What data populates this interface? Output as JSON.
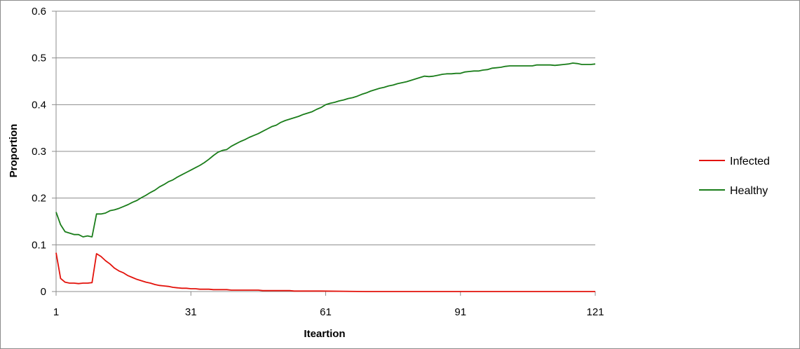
{
  "chart_data": {
    "type": "line",
    "title": "",
    "xlabel": "Iteartion",
    "ylabel": "Proportion",
    "xlim": [
      1,
      121
    ],
    "ylim": [
      0,
      0.6
    ],
    "x_ticks": [
      "1",
      "31",
      "61",
      "91",
      "121"
    ],
    "y_ticks": [
      "0",
      "0.1",
      "0.2",
      "0.3",
      "0.4",
      "0.5",
      "0.6"
    ],
    "grid": "horizontal",
    "legend_position": "right",
    "series": [
      {
        "name": "Infected",
        "color": "#e3120b",
        "points": [
          [
            1,
            0.083
          ],
          [
            2,
            0.028
          ],
          [
            3,
            0.02
          ],
          [
            4,
            0.018
          ],
          [
            5,
            0.018
          ],
          [
            6,
            0.017
          ],
          [
            7,
            0.018
          ],
          [
            8,
            0.018
          ],
          [
            9,
            0.019
          ],
          [
            10,
            0.081
          ],
          [
            11,
            0.075
          ],
          [
            12,
            0.066
          ],
          [
            13,
            0.059
          ],
          [
            14,
            0.05
          ],
          [
            15,
            0.044
          ],
          [
            16,
            0.04
          ],
          [
            17,
            0.034
          ],
          [
            18,
            0.03
          ],
          [
            19,
            0.026
          ],
          [
            20,
            0.023
          ],
          [
            21,
            0.02
          ],
          [
            22,
            0.018
          ],
          [
            23,
            0.015
          ],
          [
            24,
            0.013
          ],
          [
            25,
            0.012
          ],
          [
            26,
            0.011
          ],
          [
            27,
            0.009
          ],
          [
            28,
            0.008
          ],
          [
            29,
            0.007
          ],
          [
            30,
            0.007
          ],
          [
            31,
            0.006
          ],
          [
            32,
            0.006
          ],
          [
            33,
            0.005
          ],
          [
            34,
            0.005
          ],
          [
            35,
            0.005
          ],
          [
            36,
            0.004
          ],
          [
            37,
            0.004
          ],
          [
            38,
            0.004
          ],
          [
            39,
            0.004
          ],
          [
            40,
            0.003
          ],
          [
            41,
            0.003
          ],
          [
            42,
            0.003
          ],
          [
            43,
            0.003
          ],
          [
            44,
            0.003
          ],
          [
            45,
            0.003
          ],
          [
            46,
            0.003
          ],
          [
            47,
            0.002
          ],
          [
            48,
            0.002
          ],
          [
            49,
            0.002
          ],
          [
            50,
            0.002
          ],
          [
            51,
            0.002
          ],
          [
            52,
            0.002
          ],
          [
            53,
            0.002
          ],
          [
            54,
            0.001
          ],
          [
            55,
            0.001
          ],
          [
            60,
            0.001
          ],
          [
            70,
            0.0
          ],
          [
            80,
            0.0
          ],
          [
            90,
            0.0
          ],
          [
            100,
            0.0
          ],
          [
            110,
            0.0
          ],
          [
            121,
            0.0
          ]
        ]
      },
      {
        "name": "Healthy",
        "color": "#1a7d1a",
        "points": [
          [
            1,
            0.17
          ],
          [
            2,
            0.143
          ],
          [
            3,
            0.128
          ],
          [
            4,
            0.125
          ],
          [
            5,
            0.122
          ],
          [
            6,
            0.122
          ],
          [
            7,
            0.117
          ],
          [
            8,
            0.119
          ],
          [
            9,
            0.117
          ],
          [
            10,
            0.166
          ],
          [
            11,
            0.166
          ],
          [
            12,
            0.168
          ],
          [
            13,
            0.173
          ],
          [
            14,
            0.175
          ],
          [
            15,
            0.178
          ],
          [
            16,
            0.182
          ],
          [
            17,
            0.186
          ],
          [
            18,
            0.191
          ],
          [
            19,
            0.195
          ],
          [
            20,
            0.201
          ],
          [
            21,
            0.206
          ],
          [
            22,
            0.212
          ],
          [
            23,
            0.217
          ],
          [
            24,
            0.224
          ],
          [
            25,
            0.229
          ],
          [
            26,
            0.235
          ],
          [
            27,
            0.239
          ],
          [
            28,
            0.245
          ],
          [
            29,
            0.25
          ],
          [
            30,
            0.255
          ],
          [
            31,
            0.26
          ],
          [
            32,
            0.265
          ],
          [
            33,
            0.27
          ],
          [
            34,
            0.276
          ],
          [
            35,
            0.283
          ],
          [
            36,
            0.291
          ],
          [
            37,
            0.298
          ],
          [
            38,
            0.302
          ],
          [
            39,
            0.304
          ],
          [
            40,
            0.311
          ],
          [
            41,
            0.316
          ],
          [
            42,
            0.321
          ],
          [
            43,
            0.325
          ],
          [
            44,
            0.33
          ],
          [
            45,
            0.334
          ],
          [
            46,
            0.338
          ],
          [
            47,
            0.343
          ],
          [
            48,
            0.348
          ],
          [
            49,
            0.353
          ],
          [
            50,
            0.356
          ],
          [
            51,
            0.362
          ],
          [
            52,
            0.366
          ],
          [
            53,
            0.369
          ],
          [
            54,
            0.372
          ],
          [
            55,
            0.375
          ],
          [
            56,
            0.379
          ],
          [
            57,
            0.382
          ],
          [
            58,
            0.385
          ],
          [
            59,
            0.39
          ],
          [
            60,
            0.394
          ],
          [
            61,
            0.4
          ],
          [
            62,
            0.403
          ],
          [
            63,
            0.405
          ],
          [
            64,
            0.408
          ],
          [
            65,
            0.41
          ],
          [
            66,
            0.413
          ],
          [
            67,
            0.415
          ],
          [
            68,
            0.418
          ],
          [
            69,
            0.422
          ],
          [
            70,
            0.425
          ],
          [
            71,
            0.429
          ],
          [
            72,
            0.432
          ],
          [
            73,
            0.435
          ],
          [
            74,
            0.437
          ],
          [
            75,
            0.44
          ],
          [
            76,
            0.442
          ],
          [
            77,
            0.445
          ],
          [
            78,
            0.447
          ],
          [
            79,
            0.449
          ],
          [
            80,
            0.452
          ],
          [
            81,
            0.455
          ],
          [
            82,
            0.458
          ],
          [
            83,
            0.461
          ],
          [
            84,
            0.46
          ],
          [
            85,
            0.461
          ],
          [
            86,
            0.463
          ],
          [
            87,
            0.465
          ],
          [
            88,
            0.466
          ],
          [
            89,
            0.466
          ],
          [
            90,
            0.467
          ],
          [
            91,
            0.467
          ],
          [
            92,
            0.47
          ],
          [
            93,
            0.471
          ],
          [
            94,
            0.472
          ],
          [
            95,
            0.472
          ],
          [
            96,
            0.474
          ],
          [
            97,
            0.475
          ],
          [
            98,
            0.478
          ],
          [
            99,
            0.479
          ],
          [
            100,
            0.48
          ],
          [
            101,
            0.482
          ],
          [
            102,
            0.483
          ],
          [
            103,
            0.483
          ],
          [
            104,
            0.483
          ],
          [
            105,
            0.483
          ],
          [
            106,
            0.483
          ],
          [
            107,
            0.483
          ],
          [
            108,
            0.485
          ],
          [
            109,
            0.485
          ],
          [
            110,
            0.485
          ],
          [
            111,
            0.485
          ],
          [
            112,
            0.484
          ],
          [
            113,
            0.485
          ],
          [
            114,
            0.486
          ],
          [
            115,
            0.487
          ],
          [
            116,
            0.489
          ],
          [
            117,
            0.488
          ],
          [
            118,
            0.486
          ],
          [
            119,
            0.486
          ],
          [
            120,
            0.486
          ],
          [
            121,
            0.487
          ]
        ]
      }
    ]
  }
}
